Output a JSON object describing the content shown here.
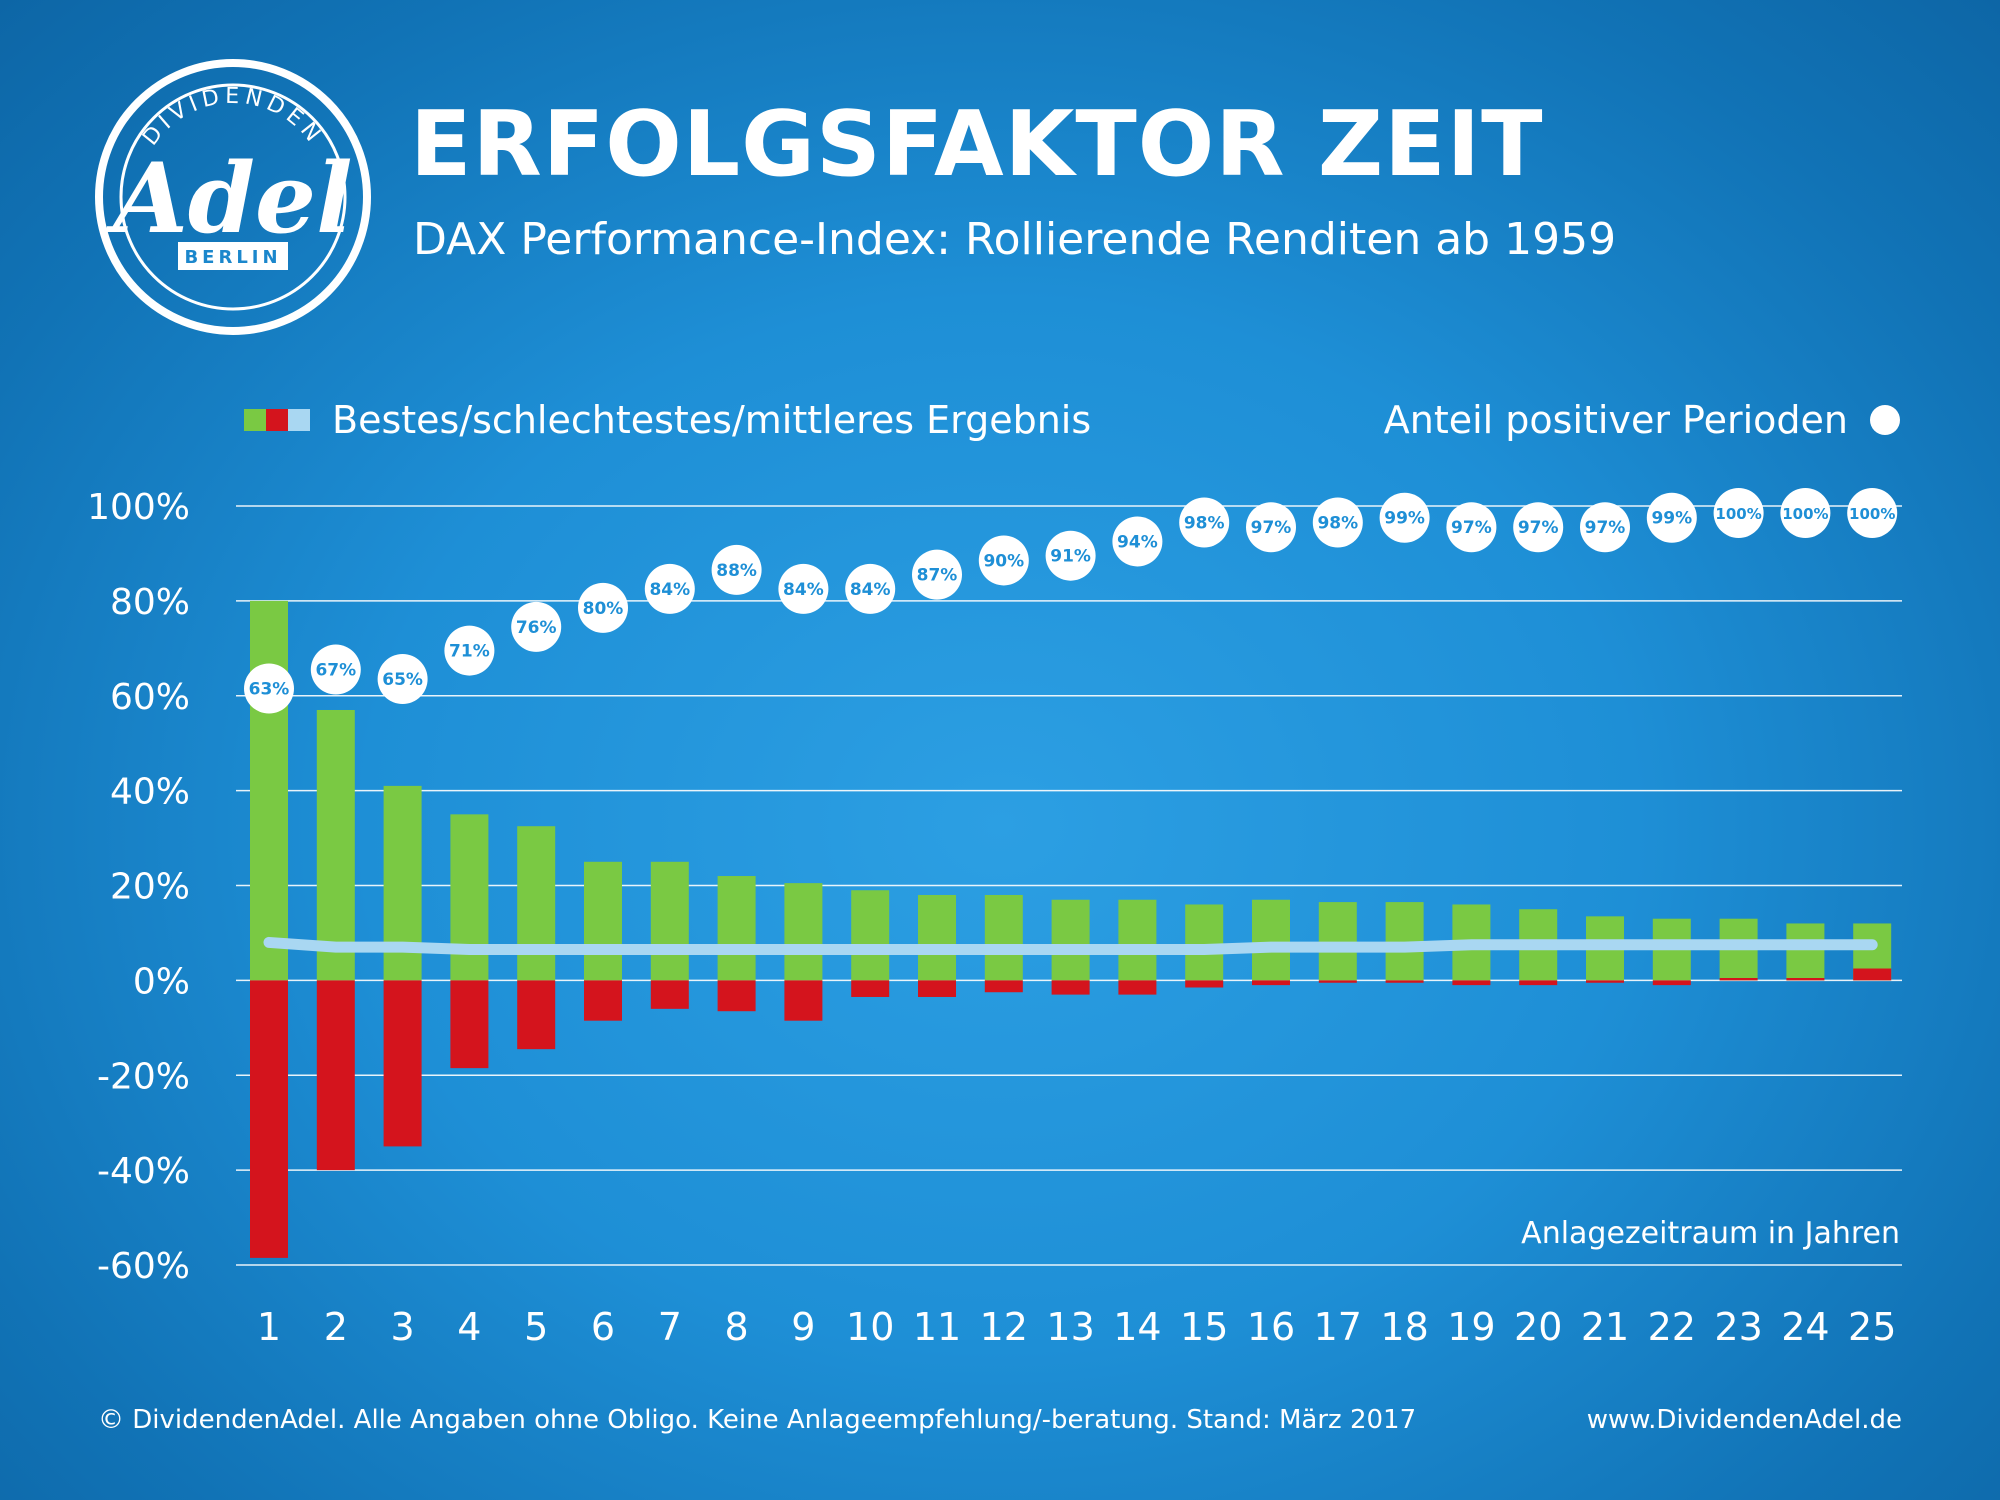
{
  "logo": {
    "top_text": "DIVIDENDEN",
    "script_text": "Adel",
    "bottom_text": "BERLIN"
  },
  "header": {
    "title": "ERFOLGSFAKTOR ZEIT",
    "subtitle": "DAX Performance-Index: Rollierende Renditen ab 1959"
  },
  "legend": {
    "left_label": "Bestes/schlechtestes/mittleres Ergebnis",
    "right_label": "Anteil positiver Perioden"
  },
  "footer": {
    "left": "© DividendenAdel. Alle Angaben ohne Obligo. Keine Anlageempfehlung/-beratung. Stand: März 2017",
    "right": "www.DividendenAdel.de"
  },
  "colors": {
    "best": "#7ac943",
    "worst": "#d4141d",
    "mean": "#a9d7f2",
    "grid": "#ffffff",
    "bubble": "#ffffff",
    "bubble_text": "#1e8fd6"
  },
  "chart_data": {
    "type": "bar",
    "xlabel": "Anlagezeitraum in Jahren",
    "ylabel": "",
    "ylim": [
      -60,
      100
    ],
    "yticks": [
      100,
      80,
      60,
      40,
      20,
      0,
      -20,
      -40,
      -60
    ],
    "ytick_labels": [
      "100%",
      "80%",
      "60%",
      "40%",
      "20%",
      "0%",
      "-20%",
      "-40%",
      "-60%"
    ],
    "grid": true,
    "categories": [
      "1",
      "2",
      "3",
      "4",
      "5",
      "6",
      "7",
      "8",
      "9",
      "10",
      "11",
      "12",
      "13",
      "14",
      "15",
      "16",
      "17",
      "18",
      "19",
      "20",
      "21",
      "22",
      "23",
      "24",
      "25"
    ],
    "series": [
      {
        "name": "Bestes Ergebnis",
        "values": [
          80,
          57,
          41,
          35,
          32.5,
          25,
          25,
          22,
          20.5,
          19,
          18,
          18,
          17,
          17,
          16,
          17,
          16.5,
          16.5,
          16,
          15,
          13.5,
          13,
          13,
          12,
          12
        ]
      },
      {
        "name": "Schlechtestes Ergebnis",
        "values": [
          -58.5,
          -40,
          -35,
          -18.5,
          -14.5,
          -8.5,
          -6,
          -6.5,
          -8.5,
          -3.5,
          -3.5,
          -2.5,
          -3,
          -3,
          -1.5,
          -1,
          -0.5,
          -0.5,
          -1,
          -1,
          -0.5,
          -1,
          0.5,
          0.5,
          2.5
        ]
      },
      {
        "name": "Mittleres Ergebnis",
        "values": [
          8,
          7,
          7,
          6.5,
          6.5,
          6.5,
          6.5,
          6.5,
          6.5,
          6.5,
          6.5,
          6.5,
          6.5,
          6.5,
          6.5,
          7,
          7,
          7,
          7.5,
          7.5,
          7.5,
          7.5,
          7.5,
          7.5,
          7.5
        ]
      },
      {
        "name": "Anteil positiver Perioden",
        "values": [
          63,
          67,
          65,
          71,
          76,
          80,
          84,
          88,
          84,
          84,
          87,
          90,
          91,
          94,
          98,
          97,
          98,
          99,
          97,
          97,
          97,
          99,
          100,
          100,
          100
        ],
        "labels": [
          "63%",
          "67%",
          "65%",
          "71%",
          "76%",
          "80%",
          "84%",
          "88%",
          "84%",
          "84%",
          "87%",
          "90%",
          "91%",
          "94%",
          "98%",
          "97%",
          "98%",
          "99%",
          "97%",
          "97%",
          "97%",
          "99%",
          "100%",
          "100%",
          "100%"
        ]
      }
    ]
  }
}
